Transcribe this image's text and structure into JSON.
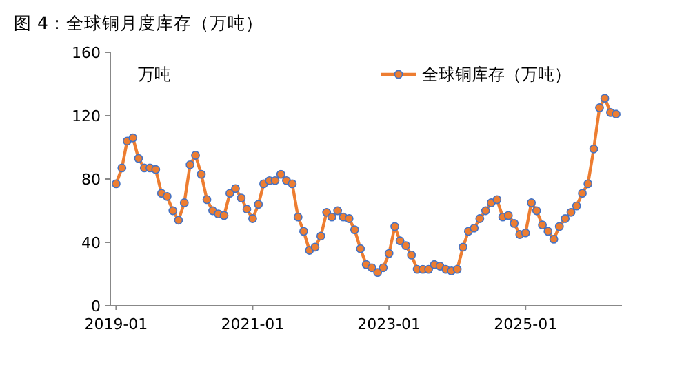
{
  "chart_data": {
    "type": "line",
    "title": "图 4：全球铜月度库存（万吨）",
    "ylabel": "万吨",
    "x": [
      "2019-01",
      "2019-02",
      "2019-03",
      "2019-04",
      "2019-05",
      "2019-06",
      "2019-07",
      "2019-08",
      "2019-09",
      "2019-10",
      "2019-11",
      "2019-12",
      "2020-01",
      "2020-02",
      "2020-03",
      "2020-04",
      "2020-05",
      "2020-06",
      "2020-07",
      "2020-08",
      "2020-09",
      "2020-10",
      "2020-11",
      "2020-12",
      "2021-01",
      "2021-02",
      "2021-03",
      "2021-04",
      "2021-05",
      "2021-06",
      "2021-07",
      "2021-08",
      "2021-09",
      "2021-10",
      "2021-11",
      "2021-12",
      "2022-01",
      "2022-02",
      "2022-03",
      "2022-04",
      "2022-05",
      "2022-06",
      "2022-07",
      "2022-08",
      "2022-09",
      "2022-10",
      "2022-11",
      "2022-12",
      "2023-01",
      "2023-02",
      "2023-03",
      "2023-04",
      "2023-05",
      "2023-06",
      "2023-07",
      "2023-08",
      "2023-09",
      "2023-10",
      "2023-11",
      "2023-12",
      "2024-01",
      "2024-02",
      "2024-03",
      "2024-04",
      "2024-05",
      "2024-06",
      "2024-07",
      "2024-08",
      "2024-09",
      "2024-10",
      "2024-11",
      "2024-12",
      "2025-01",
      "2025-02",
      "2025-03",
      "2025-04",
      "2025-05",
      "2025-06",
      "2025-07",
      "2025-08",
      "2025-09",
      "2025-10",
      "2025-11",
      "2025-12",
      "2026-01",
      "2026-02",
      "2026-03",
      "2026-04",
      "2026-05"
    ],
    "series": [
      {
        "name": "全球铜库存（万吨）",
        "color": "#ed7d31",
        "values": [
          77,
          87,
          104,
          106,
          93,
          87,
          87,
          86,
          71,
          69,
          60,
          54,
          65,
          89,
          95,
          83,
          67,
          60,
          58,
          57,
          71,
          74,
          68,
          61,
          55,
          64,
          77,
          79,
          79,
          83,
          79,
          77,
          56,
          47,
          35,
          37,
          44,
          59,
          56,
          60,
          56,
          55,
          48,
          36,
          26,
          24,
          21,
          24,
          33,
          50,
          41,
          38,
          32,
          23,
          23,
          23,
          26,
          25,
          23,
          22,
          23,
          37,
          47,
          49,
          55,
          60,
          65,
          67,
          56,
          57,
          52,
          45,
          46,
          65,
          60,
          51,
          47,
          42,
          50,
          55,
          59,
          63,
          71,
          77,
          99,
          125,
          131,
          122,
          121
        ]
      }
    ],
    "xlim": [
      "2018-12",
      "2026-06"
    ],
    "xticks": [
      "2019-01",
      "2021-01",
      "2023-01",
      "2025-01"
    ],
    "ylim": [
      0,
      160
    ],
    "yticks": [
      0,
      40,
      80,
      120,
      160
    ],
    "legend": "top right",
    "marker": "circle",
    "line_style": "solid"
  }
}
